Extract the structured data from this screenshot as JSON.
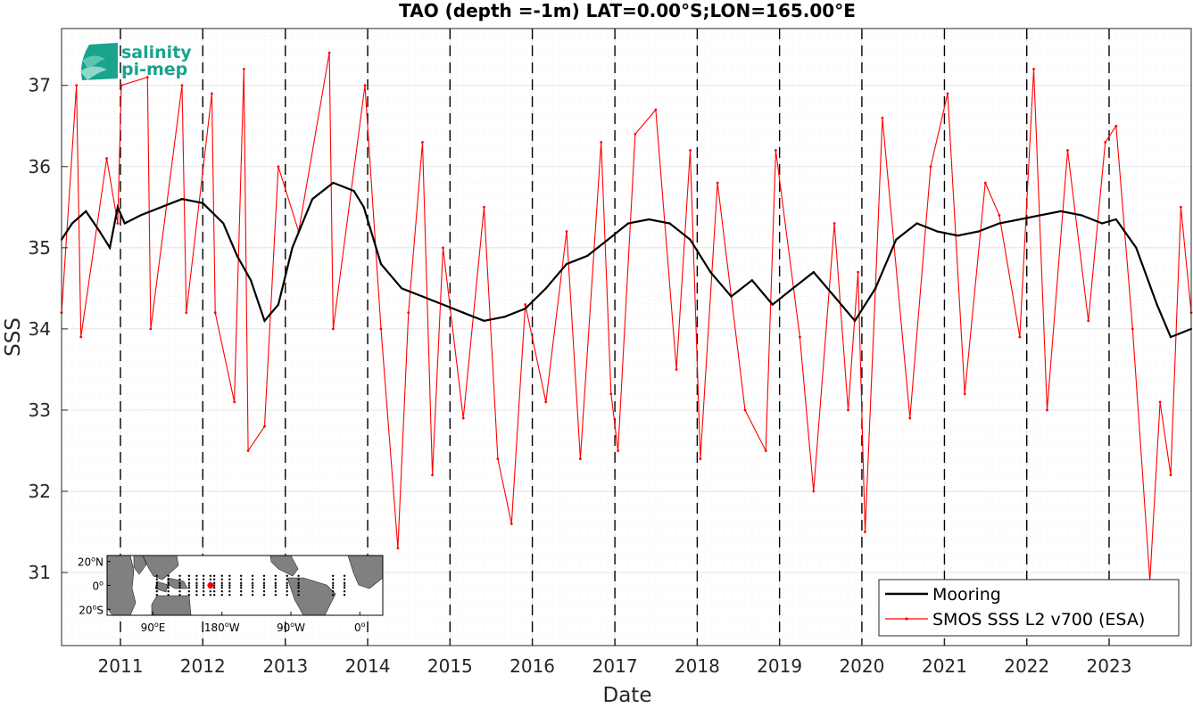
{
  "chart_data": {
    "type": "line",
    "title": "TAO (depth =-1m) LAT=0.00°S;LON=165.00°E",
    "xlabel": "Date",
    "ylabel": "SSS",
    "xlim": [
      "2010-04-15",
      "2023-12-31"
    ],
    "ylim": [
      30.1,
      37.7
    ],
    "x_ticks": [
      "2011",
      "2012",
      "2013",
      "2014",
      "2015",
      "2016",
      "2017",
      "2018",
      "2019",
      "2020",
      "2021",
      "2022",
      "2023"
    ],
    "y_ticks": [
      "31",
      "32",
      "33",
      "34",
      "35",
      "36",
      "37"
    ],
    "grid": true,
    "legend_position": "bottom-right",
    "logo": {
      "line1": "salinity",
      "line2": "pi-mep"
    },
    "colors": {
      "mooring": "#000000",
      "smos": "#ff0000",
      "land": "#808080",
      "ocean": "#ffffff",
      "buoy": "#000000",
      "site": "#ff0000"
    },
    "series": [
      {
        "name": "Mooring",
        "points": [
          [
            "2010-04-15",
            35.1
          ],
          [
            "2010-06-01",
            35.3
          ],
          [
            "2010-08-01",
            35.45
          ],
          [
            "2010-10-01",
            35.2
          ],
          [
            "2010-11-15",
            35.0
          ],
          [
            "2010-12-20",
            35.5
          ],
          [
            "2011-01-20",
            35.3
          ],
          [
            "2011-04-01",
            35.4
          ],
          [
            "2011-07-01",
            35.5
          ],
          [
            "2011-10-01",
            35.6
          ],
          [
            "2012-01-01",
            35.55
          ],
          [
            "2012-04-01",
            35.3
          ],
          [
            "2012-06-01",
            34.9
          ],
          [
            "2012-08-01",
            34.6
          ],
          [
            "2012-10-01",
            34.1
          ],
          [
            "2012-12-01",
            34.3
          ],
          [
            "2013-02-01",
            35.0
          ],
          [
            "2013-05-01",
            35.6
          ],
          [
            "2013-08-01",
            35.8
          ],
          [
            "2013-11-01",
            35.7
          ],
          [
            "2013-12-15",
            35.5
          ],
          [
            "2014-03-01",
            34.8
          ],
          [
            "2014-06-01",
            34.5
          ],
          [
            "2014-09-01",
            34.4
          ],
          [
            "2014-12-01",
            34.3
          ],
          [
            "2015-03-01",
            34.2
          ],
          [
            "2015-06-01",
            34.1
          ],
          [
            "2015-09-01",
            34.15
          ],
          [
            "2015-12-01",
            34.25
          ],
          [
            "2016-03-01",
            34.5
          ],
          [
            "2016-06-01",
            34.8
          ],
          [
            "2016-09-01",
            34.9
          ],
          [
            "2016-12-01",
            35.1
          ],
          [
            "2017-03-01",
            35.3
          ],
          [
            "2017-06-01",
            35.35
          ],
          [
            "2017-09-01",
            35.3
          ],
          [
            "2017-12-01",
            35.1
          ],
          [
            "2018-03-01",
            34.7
          ],
          [
            "2018-06-01",
            34.4
          ],
          [
            "2018-09-01",
            34.6
          ],
          [
            "2018-12-01",
            34.3
          ],
          [
            "2019-03-01",
            34.5
          ],
          [
            "2019-06-01",
            34.7
          ],
          [
            "2019-09-01",
            34.4
          ],
          [
            "2019-12-01",
            34.1
          ],
          [
            "2020-03-01",
            34.5
          ],
          [
            "2020-06-01",
            35.1
          ],
          [
            "2020-09-01",
            35.3
          ],
          [
            "2020-12-01",
            35.2
          ],
          [
            "2021-03-01",
            35.15
          ],
          [
            "2021-06-01",
            35.2
          ],
          [
            "2021-09-01",
            35.3
          ],
          [
            "2021-12-01",
            35.35
          ],
          [
            "2022-03-01",
            35.4
          ],
          [
            "2022-06-01",
            35.45
          ],
          [
            "2022-09-01",
            35.4
          ],
          [
            "2022-12-01",
            35.3
          ],
          [
            "2023-02-01",
            35.35
          ],
          [
            "2023-05-01",
            35.0
          ],
          [
            "2023-08-01",
            34.3
          ],
          [
            "2023-10-01",
            33.9
          ],
          [
            "2023-12-31",
            34.0
          ]
        ]
      },
      {
        "name": "SMOS SSS L2 v700 (ESA)",
        "points": [
          [
            "2010-04-15",
            34.2
          ],
          [
            "2010-06-20",
            37.0
          ],
          [
            "2010-07-10",
            33.9
          ],
          [
            "2010-11-01",
            36.1
          ],
          [
            "2010-12-20",
            35.3
          ],
          [
            "2011-01-05",
            37.0
          ],
          [
            "2011-05-01",
            37.1
          ],
          [
            "2011-05-15",
            34.0
          ],
          [
            "2011-10-01",
            37.0
          ],
          [
            "2011-10-20",
            34.2
          ],
          [
            "2012-02-10",
            36.9
          ],
          [
            "2012-02-25",
            34.2
          ],
          [
            "2012-05-20",
            33.1
          ],
          [
            "2012-07-01",
            37.2
          ],
          [
            "2012-07-20",
            32.5
          ],
          [
            "2012-10-01",
            32.8
          ],
          [
            "2012-12-01",
            36.0
          ],
          [
            "2013-03-01",
            35.2
          ],
          [
            "2013-07-15",
            37.4
          ],
          [
            "2013-08-01",
            34.0
          ],
          [
            "2013-12-20",
            37.0
          ],
          [
            "2014-03-01",
            34.0
          ],
          [
            "2014-05-15",
            31.3
          ],
          [
            "2014-07-01",
            34.2
          ],
          [
            "2014-09-01",
            36.3
          ],
          [
            "2014-10-15",
            32.2
          ],
          [
            "2014-12-01",
            35.0
          ],
          [
            "2015-03-01",
            32.9
          ],
          [
            "2015-06-01",
            35.5
          ],
          [
            "2015-08-01",
            32.4
          ],
          [
            "2015-10-01",
            31.6
          ],
          [
            "2015-12-01",
            34.3
          ],
          [
            "2016-03-01",
            33.1
          ],
          [
            "2016-06-01",
            35.2
          ],
          [
            "2016-08-01",
            32.4
          ],
          [
            "2016-11-01",
            36.3
          ],
          [
            "2016-12-15",
            33.2
          ],
          [
            "2017-01-15",
            32.5
          ],
          [
            "2017-04-01",
            36.4
          ],
          [
            "2017-07-01",
            36.7
          ],
          [
            "2017-10-01",
            33.5
          ],
          [
            "2017-12-01",
            36.2
          ],
          [
            "2018-01-15",
            32.4
          ],
          [
            "2018-04-01",
            35.8
          ],
          [
            "2018-08-01",
            33.0
          ],
          [
            "2018-11-01",
            32.5
          ],
          [
            "2018-12-15",
            36.2
          ],
          [
            "2019-04-01",
            33.9
          ],
          [
            "2019-06-01",
            32.0
          ],
          [
            "2019-09-01",
            35.3
          ],
          [
            "2019-11-01",
            33.0
          ],
          [
            "2019-12-15",
            34.7
          ],
          [
            "2020-01-15",
            31.5
          ],
          [
            "2020-03-01",
            34.5
          ],
          [
            "2020-04-01",
            36.6
          ],
          [
            "2020-08-01",
            32.9
          ],
          [
            "2020-11-01",
            36.0
          ],
          [
            "2021-01-15",
            36.9
          ],
          [
            "2021-04-01",
            33.2
          ],
          [
            "2021-07-01",
            35.8
          ],
          [
            "2021-09-01",
            35.4
          ],
          [
            "2021-12-01",
            33.9
          ],
          [
            "2022-02-01",
            37.2
          ],
          [
            "2022-04-01",
            33.0
          ],
          [
            "2022-07-01",
            36.2
          ],
          [
            "2022-10-01",
            34.1
          ],
          [
            "2022-12-15",
            36.3
          ],
          [
            "2023-02-01",
            36.5
          ],
          [
            "2023-04-15",
            34.0
          ],
          [
            "2023-07-01",
            30.9
          ],
          [
            "2023-08-15",
            33.1
          ],
          [
            "2023-10-01",
            32.2
          ],
          [
            "2023-11-15",
            35.5
          ],
          [
            "2023-12-31",
            34.2
          ]
        ]
      }
    ],
    "inset_map": {
      "lon_range": [
        30,
        390
      ],
      "lat_range": [
        -25,
        25
      ],
      "y_ticks": [
        {
          "lat": 20,
          "label": "20",
          "hemi": "N"
        },
        {
          "lat": 0,
          "label": "0",
          "hemi": ""
        },
        {
          "lat": -20,
          "label": "20",
          "hemi": "S"
        }
      ],
      "x_ticks": [
        {
          "lon": 90,
          "label": "90",
          "hemi": "E"
        },
        {
          "lon": 180,
          "label": "180",
          "hemi": "W"
        },
        {
          "lon": 270,
          "label": "90",
          "hemi": "W"
        },
        {
          "lon": 360,
          "label": "0",
          "hemi": ""
        }
      ],
      "selected_site": {
        "lon": 165,
        "lat": 0
      },
      "buoy_lons": [
        95,
        110,
        125,
        137,
        147,
        156,
        165,
        170,
        180,
        190,
        205,
        220,
        235,
        250,
        265,
        280,
        325,
        340
      ],
      "buoy_lats": [
        8,
        5,
        2,
        0,
        -2,
        -5,
        -8
      ]
    }
  }
}
